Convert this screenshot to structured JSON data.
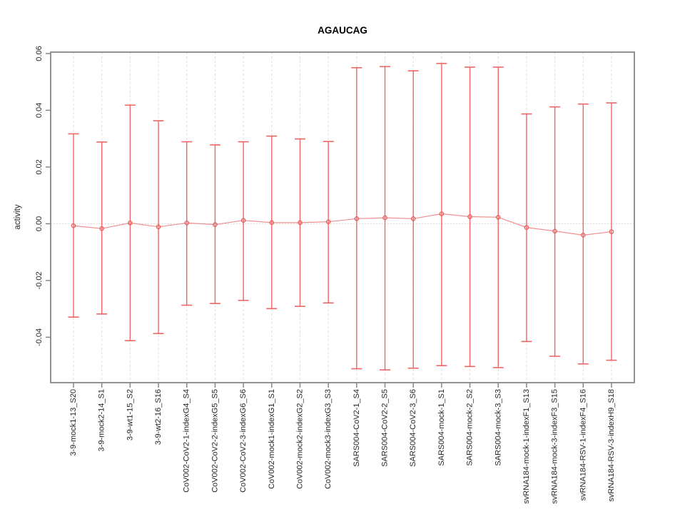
{
  "chart_data": {
    "type": "scatter",
    "subtype": "points-with-error-bars",
    "title": "AGAUCAG",
    "xlabel": "",
    "ylabel": "activity",
    "ylim": [
      -0.056,
      0.0605
    ],
    "yticks": [
      0.06,
      0.04,
      0.02,
      0.0,
      -0.02,
      -0.04
    ],
    "ytick_decimals": 2,
    "legend": "none",
    "grid": {
      "vertical": "dashed line at every category",
      "horizontal": "dotted line at y=0 only"
    },
    "categories": [
      "3-9-mock1-13_S20",
      "3-9-mock2-14_S1",
      "3-9-wt1-15_S2",
      "3-9-wt2-16_S16",
      "CoV002-CoV2-1-indexG4_S4",
      "CoV002-CoV2-2-indexG5_S5",
      "CoV002-CoV2-3-indexG6_S6",
      "CoV002-mock1-indexG1_S1",
      "CoV002-mock2-indexG2_S2",
      "CoV002-mock3-indexG3_S3",
      "SARS004-CoV2-1_S4",
      "SARS004-CoV2-2_S5",
      "SARS004-CoV2-3_S6",
      "SARS004-mock-1_S1",
      "SARS004-mock-2_S2",
      "SARS004-mock-3_S3",
      "svRNA184-mock-1-indexF1_S13",
      "svRNA184-mock-3-indexF3_S15",
      "svRNA184-RSV-1-indexF4_S16",
      "svRNA184-RSV-3-indexH9_S18"
    ],
    "series": [
      {
        "name": "activity",
        "marker": "open-circle",
        "values": [
          -0.0007,
          -0.0017,
          0.0003,
          -0.0011,
          0.0003,
          -0.0003,
          0.0012,
          0.0004,
          0.0004,
          0.0007,
          0.0018,
          0.0021,
          0.0018,
          0.0035,
          0.0025,
          0.0023,
          -0.0013,
          -0.0026,
          -0.004,
          -0.0028
        ],
        "upper": [
          0.0317,
          0.0288,
          0.0418,
          0.0363,
          0.0289,
          0.0278,
          0.0289,
          0.0309,
          0.0299,
          0.029,
          0.055,
          0.0554,
          0.0539,
          0.0565,
          0.0552,
          0.0552,
          0.0387,
          0.0412,
          0.0422,
          0.0426
        ],
        "lower": [
          -0.0329,
          -0.0318,
          -0.0412,
          -0.0387,
          -0.0287,
          -0.0281,
          -0.027,
          -0.0299,
          -0.0291,
          -0.0279,
          -0.0511,
          -0.0515,
          -0.0509,
          -0.05,
          -0.0503,
          -0.0507,
          -0.0415,
          -0.0467,
          -0.0494,
          -0.0481
        ]
      }
    ],
    "colors": {
      "errorbar": "#ee6666",
      "line": "#f19090",
      "marker": "#e85c5c",
      "grid": "#dcdcdc",
      "zero_line": "#d0d0d0",
      "box": "#878787",
      "text": "#262626"
    }
  }
}
